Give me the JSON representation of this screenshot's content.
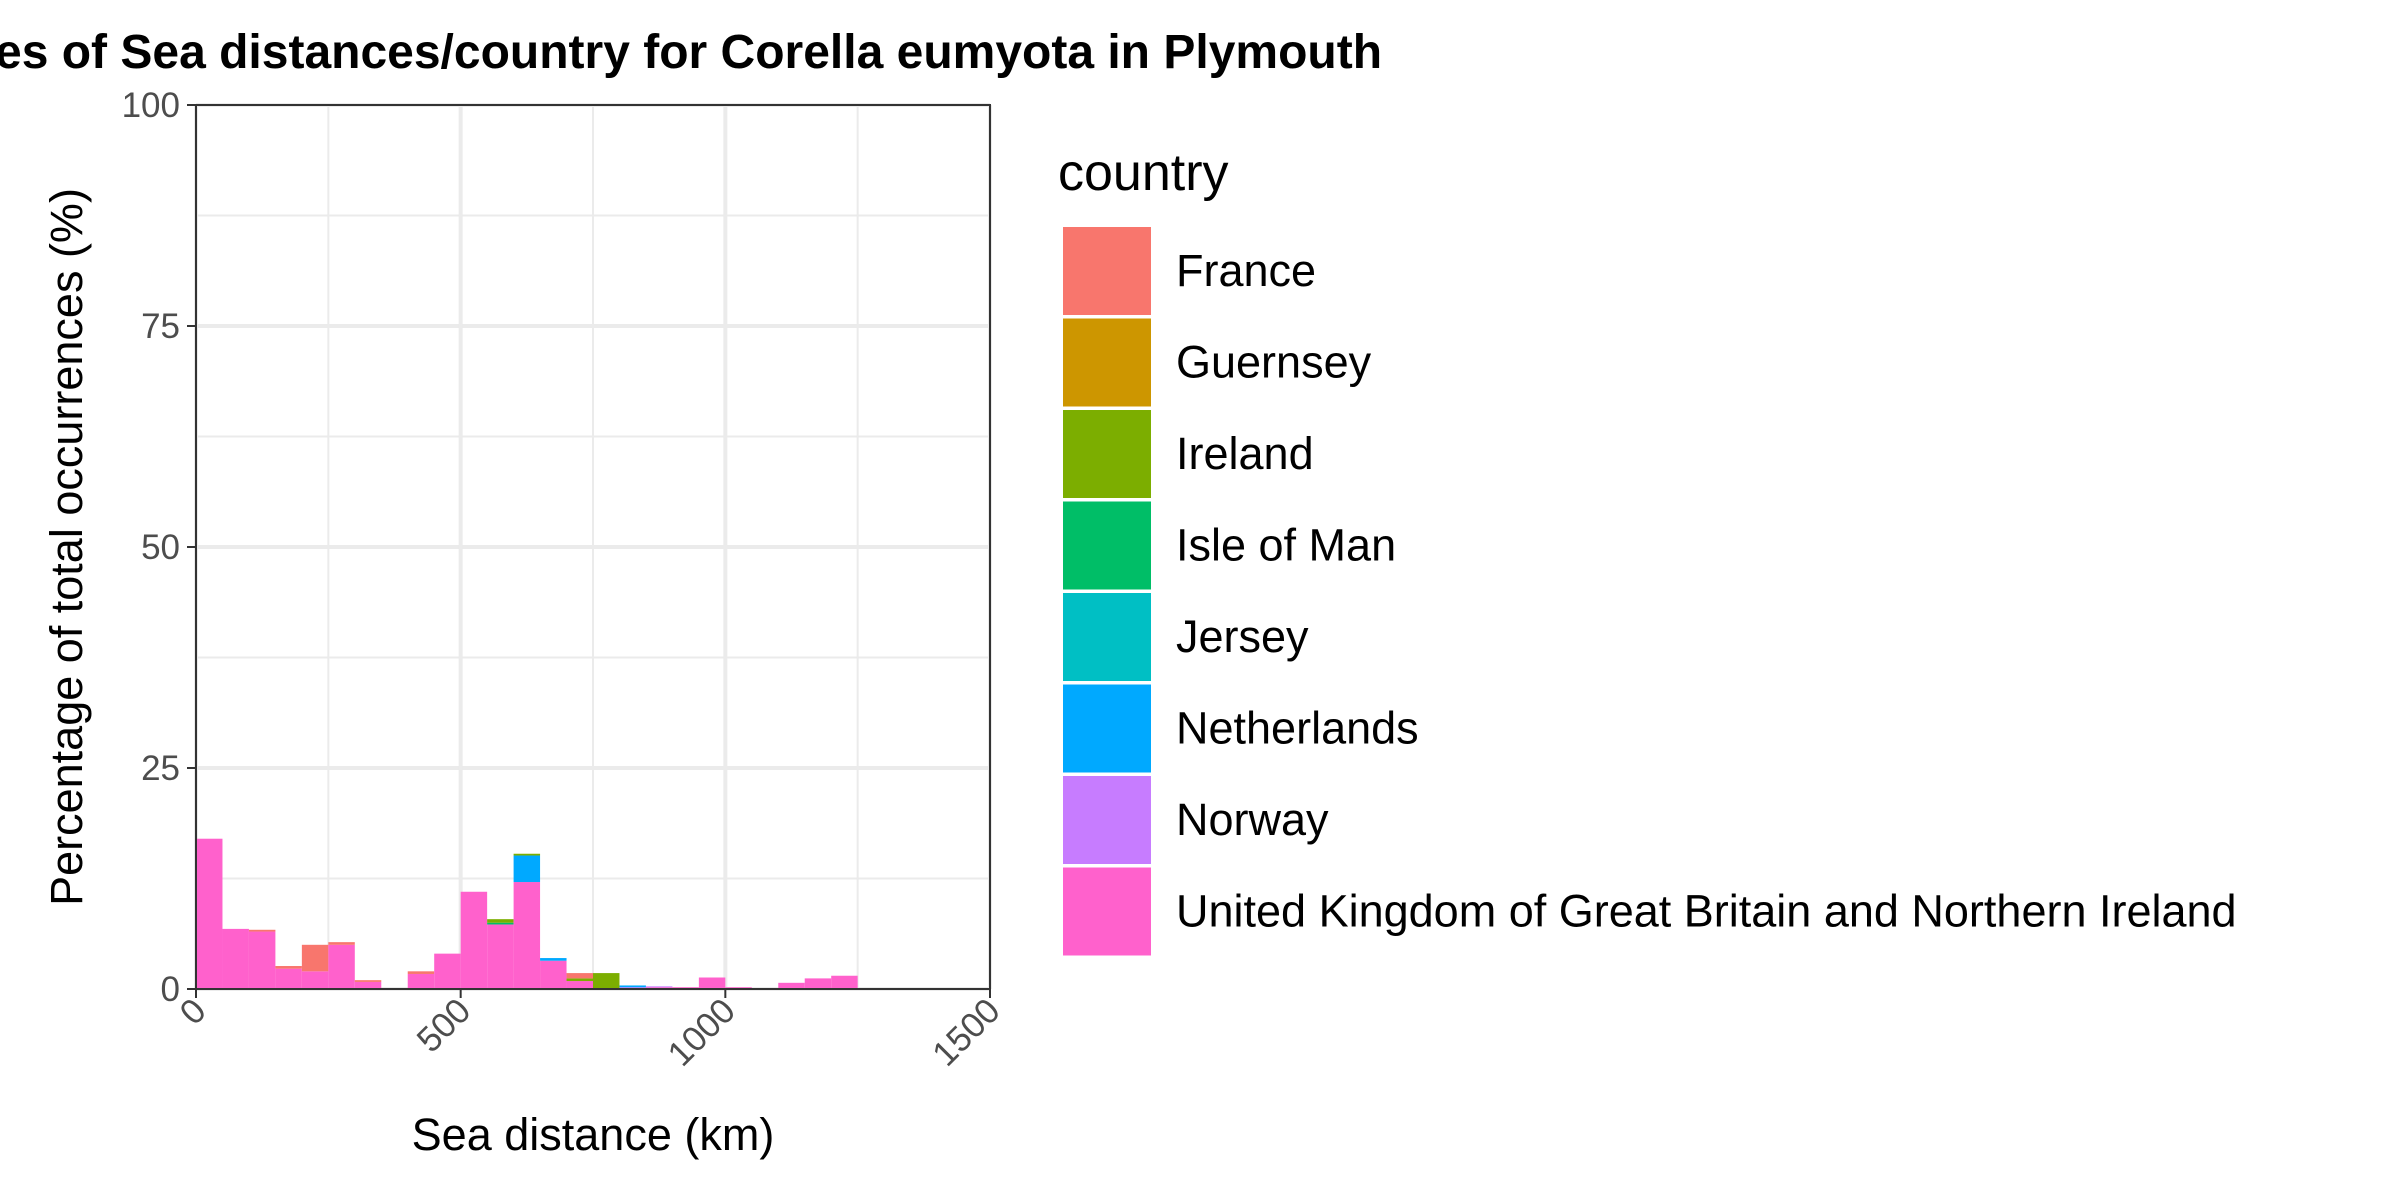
{
  "chart_data": {
    "type": "bar",
    "stacked": true,
    "title": "es of Sea distances/country for Corella eumyota in Plymouth",
    "xlabel": "Sea distance (km)",
    "ylabel": "Percentage of total occurrences (%)",
    "xlim": [
      0,
      1500
    ],
    "ylim": [
      0,
      100
    ],
    "x_ticks": [
      0,
      500,
      1000,
      1500
    ],
    "y_ticks": [
      0,
      25,
      50,
      75,
      100
    ],
    "grid": true,
    "legend_title": "country",
    "legend_position": "right",
    "bin_width": 50,
    "bin_starts": [
      0,
      50,
      100,
      150,
      200,
      250,
      300,
      350,
      400,
      450,
      500,
      550,
      600,
      650,
      700,
      750,
      800,
      850,
      900,
      950,
      1000,
      1050,
      1100,
      1150,
      1200
    ],
    "series": [
      {
        "name": "France",
        "color": "#F8766D",
        "values": [
          0,
          0,
          0.2,
          0.3,
          3.0,
          0.3,
          0.2,
          0,
          0.3,
          0,
          0,
          0,
          0,
          0,
          0.6,
          0,
          0,
          0,
          0,
          0,
          0,
          0,
          0,
          0,
          0
        ]
      },
      {
        "name": "Guernsey",
        "color": "#CD9600",
        "values": [
          0,
          0,
          0,
          0,
          0,
          0,
          0,
          0,
          0,
          0,
          0,
          0,
          0,
          0,
          0,
          0,
          0,
          0,
          0,
          0,
          0,
          0,
          0,
          0,
          0
        ]
      },
      {
        "name": "Ireland",
        "color": "#7CAE00",
        "values": [
          0,
          0,
          0,
          0,
          0,
          0,
          0,
          0,
          0,
          0,
          0,
          0.4,
          0.2,
          0,
          0.3,
          1.8,
          0,
          0,
          0,
          0,
          0,
          0,
          0,
          0,
          0
        ]
      },
      {
        "name": "Isle of Man",
        "color": "#00BE67",
        "values": [
          0,
          0,
          0,
          0,
          0,
          0,
          0,
          0,
          0,
          0,
          0,
          0.2,
          0,
          0,
          0,
          0,
          0,
          0,
          0,
          0,
          0,
          0,
          0,
          0,
          0
        ]
      },
      {
        "name": "Jersey",
        "color": "#00BFC4",
        "values": [
          0,
          0,
          0,
          0,
          0,
          0,
          0,
          0,
          0,
          0,
          0,
          0,
          0,
          0,
          0,
          0,
          0,
          0,
          0,
          0,
          0,
          0,
          0,
          0,
          0
        ]
      },
      {
        "name": "Netherlands",
        "color": "#00A9FF",
        "values": [
          0,
          0,
          0,
          0,
          0,
          0,
          0,
          0,
          0,
          0,
          0,
          0,
          3.0,
          0.3,
          0,
          0,
          0.2,
          0,
          0,
          0,
          0,
          0,
          0,
          0,
          0
        ]
      },
      {
        "name": "Norway",
        "color": "#C77CFF",
        "values": [
          0,
          0,
          0,
          0,
          0,
          0,
          0,
          0,
          0,
          0,
          0,
          0,
          0,
          0,
          0,
          0,
          0.2,
          0.1,
          0,
          0,
          0,
          0,
          0,
          0,
          0
        ]
      },
      {
        "name": "United Kingdom of Great Britain and Northern Ireland",
        "color": "#FF61CC",
        "values": [
          17.0,
          6.8,
          6.5,
          2.3,
          2.0,
          5.0,
          0.8,
          0,
          1.7,
          4.0,
          11.0,
          7.3,
          12.1,
          3.2,
          0.9,
          0,
          0,
          0.2,
          0.2,
          1.3,
          0.2,
          0,
          0.7,
          1.2,
          1.5
        ]
      }
    ]
  }
}
